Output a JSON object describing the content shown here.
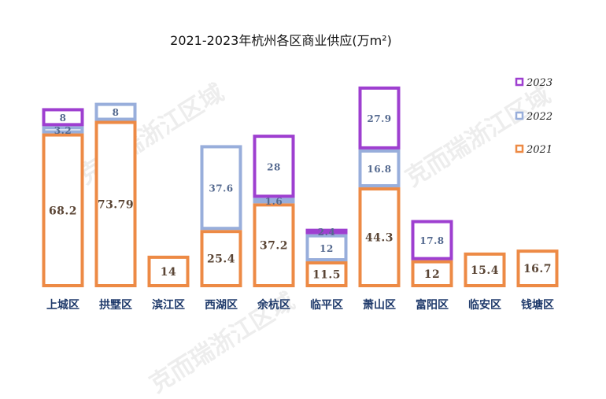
{
  "chart_data": {
    "type": "bar",
    "stacked": true,
    "title": "2021-2023年杭州各区商业供应(万m²)",
    "categories": [
      "上城区",
      "拱墅区",
      "滨江区",
      "西湖区",
      "余杭区",
      "临平区",
      "萧山区",
      "富阳区",
      "临安区",
      "钱塘区"
    ],
    "series": [
      {
        "name": "2021",
        "values": [
          68.2,
          73.79,
          14,
          25.4,
          37.2,
          11.5,
          44.3,
          12,
          15.4,
          16.7
        ],
        "labels": [
          "68.2",
          "73.79",
          "14",
          "25.4",
          "37.2",
          "11.5",
          "44.3",
          "12",
          "15.4",
          "16.7"
        ]
      },
      {
        "name": "2022",
        "values": [
          3.2,
          8,
          null,
          37.6,
          1.6,
          12,
          16.8,
          null,
          null,
          null
        ],
        "labels": [
          "3.2",
          "8",
          "",
          "37.6",
          "1.6",
          "12",
          "16.8",
          "",
          "",
          ""
        ]
      },
      {
        "name": "2023",
        "values": [
          8,
          null,
          null,
          null,
          28,
          2.4,
          27.9,
          17.8,
          null,
          null
        ],
        "labels": [
          "8",
          "",
          "",
          "",
          "28",
          "2.4",
          "27.9",
          "17.8",
          "",
          ""
        ]
      }
    ],
    "legend_position": "right",
    "grid": false,
    "colors": {
      "2021": "#ED8A45",
      "2022": "#98AEDB",
      "2023": "#9E3FD0"
    },
    "label_colors": {
      "2021": "#5a4535",
      "2022": "#54698f",
      "2023": "#54698f"
    },
    "axis_label_color": "#1f3a6b"
  },
  "watermark": "克而瑞浙江区域"
}
